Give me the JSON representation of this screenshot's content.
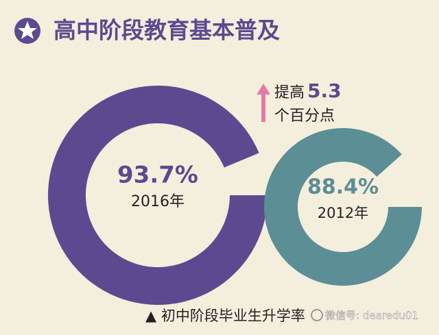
{
  "chart_data": {
    "type": "donut",
    "title": "高中阶段教育基本普及",
    "categories": [
      "2016年",
      "2012年"
    ],
    "values": [
      93.7,
      88.4
    ],
    "value_labels": [
      "93.7%",
      "88.4%"
    ],
    "colors": [
      "#5b4a8f",
      "#5b8e95"
    ],
    "annotation": {
      "prefix": "提高",
      "value": 5.3,
      "suffix": "个百分点"
    },
    "caption": "▲ 初中阶段毕业生升学率",
    "watermark": "微信号: dearedu01"
  }
}
